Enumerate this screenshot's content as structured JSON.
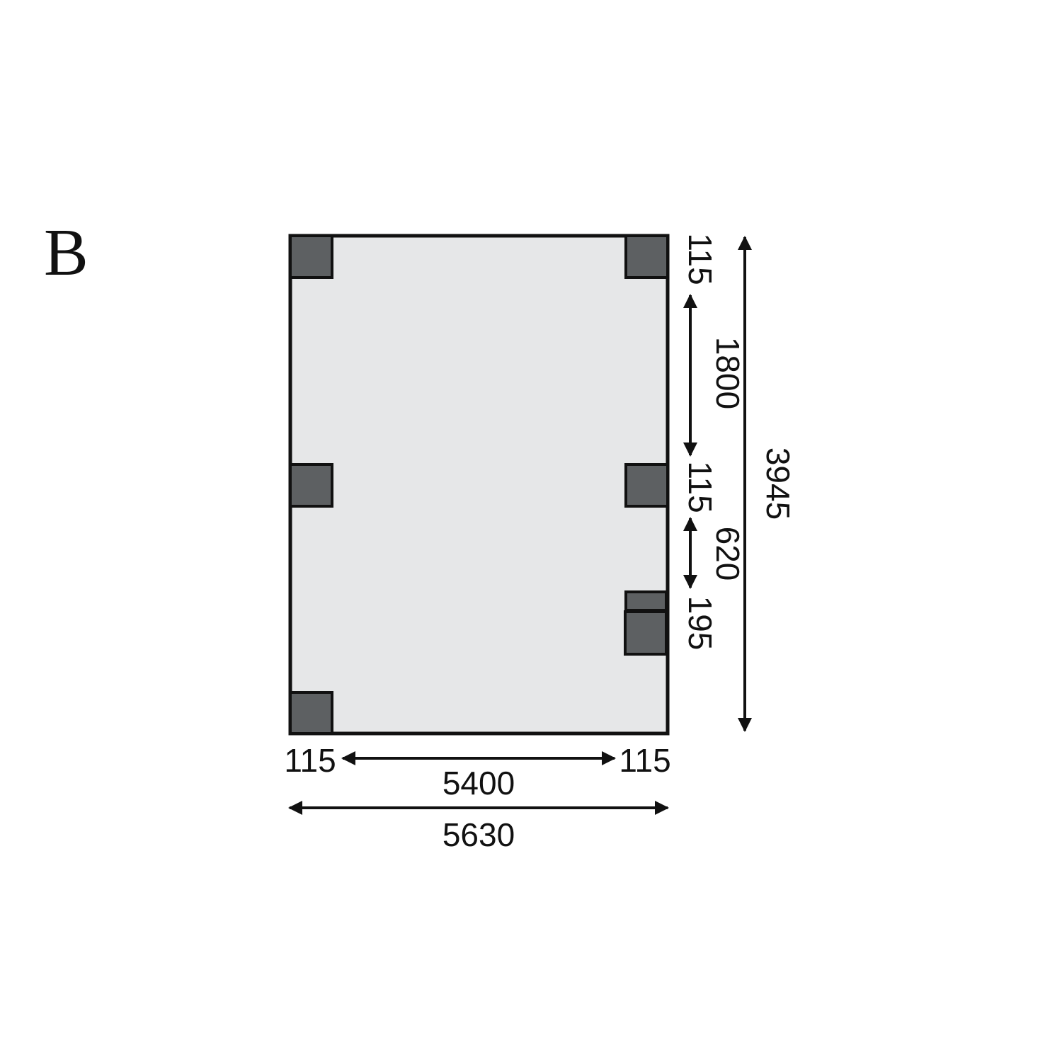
{
  "plan_label": "B",
  "colors": {
    "floor": "#e6e7e8",
    "post": "#5d6062",
    "line": "#111111"
  },
  "dimensions": {
    "right": {
      "post_top": "115",
      "span_1": "1800",
      "post_mid": "115",
      "span_2": "620",
      "post_lower": "195"
    },
    "overall_depth": "3945",
    "bottom": {
      "post_left": "115",
      "span": "5400",
      "post_right": "115",
      "overall_width": "5630"
    }
  }
}
